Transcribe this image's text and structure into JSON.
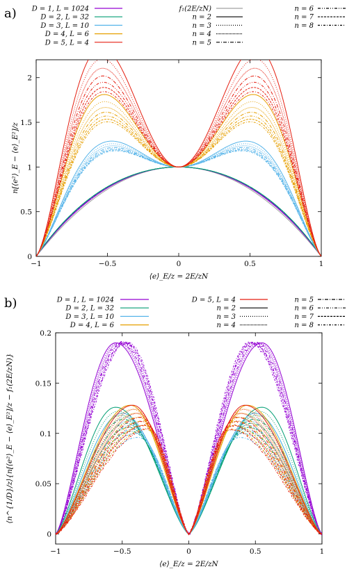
{
  "panels": [
    {
      "panel_label": "a)",
      "chart_data": {
        "type": "line",
        "xlabel": "⟨e⟩_E/z = 2E/zN",
        "ylabel": "n[⟨e²⟩_E − ⟨e⟩_E²]/z",
        "xlim": [
          -1,
          1
        ],
        "ylim": [
          0,
          2.2
        ],
        "xticks": [
          -1,
          -0.5,
          0,
          0.5,
          1
        ],
        "xtick_labels": [
          "−1",
          "−0.5",
          "0",
          "0.5",
          "1"
        ],
        "yticks": [
          0,
          0.5,
          1,
          1.5,
          2
        ],
        "ytick_labels": [
          "0",
          "0.5",
          "1",
          "1.5",
          "2"
        ],
        "grid": false,
        "legend_position": "top",
        "legend": [
          {
            "label": "D = 1, L = 1024",
            "color": "#9400d3",
            "dash": "solid"
          },
          {
            "label": "D = 2, L = 32",
            "color": "#009e73",
            "dash": "solid"
          },
          {
            "label": "D = 3, L = 10",
            "color": "#56b4e9",
            "dash": "solid"
          },
          {
            "label": "D = 4, L = 6",
            "color": "#e69f00",
            "dash": "solid"
          },
          {
            "label": "D = 5, L = 4",
            "color": "#e51e10",
            "dash": "solid"
          },
          {
            "label": "f₁(2E/zN)",
            "color": "#a0a0a0",
            "dash": "solid"
          },
          {
            "label": "n = 2",
            "color": "#000000",
            "dash": "solid"
          },
          {
            "label": "n = 3",
            "color": "#000000",
            "dash": "1,2"
          },
          {
            "label": "n = 4",
            "color": "#000000",
            "dash": "1,1"
          },
          {
            "label": "n = 5",
            "color": "#000000",
            "dash": "5,2,1,2"
          },
          {
            "label": "n = 6",
            "color": "#000000",
            "dash": "4,2,1,2,1,2"
          },
          {
            "label": "n = 7",
            "color": "#000000",
            "dash": "3,1.5"
          },
          {
            "label": "n = 8",
            "color": "#000000",
            "dash": "3,2,1,2"
          }
        ],
        "series": [
          {
            "D": 1,
            "color": "#9400d3",
            "peak_n2": [
              0.0,
              1.0
            ],
            "edge": 0.3
          },
          {
            "D": 2,
            "color": "#009e73",
            "peak_n2": [
              0.0,
              1.0
            ],
            "edge": 0.45
          },
          {
            "D": 3,
            "color": "#56b4e9",
            "peak_n2": [
              0.4,
              1.27
            ],
            "edge": 0.6
          },
          {
            "D": 4,
            "color": "#e69f00",
            "peak_n2": [
              0.38,
              1.65
            ],
            "edge": 0.8
          },
          {
            "D": 5,
            "color": "#e51e10",
            "peak_n2": [
              0.37,
              2.0
            ],
            "edge": 1.0
          }
        ],
        "reference": {
          "name": "f₁(2E/zN)",
          "color": "#a0a0a0",
          "formula": "1 - x^2"
        }
      }
    },
    {
      "panel_label": "b)",
      "chart_data": {
        "type": "line",
        "xlabel": "⟨e⟩_E/z = 2E/zN",
        "ylabel": "⟨n^{1/D}/z⟩{n[⟨e²⟩_E − ⟨e⟩_E²]/z − f₁(2E/zN)}",
        "xlim": [
          -1,
          1
        ],
        "ylim": [
          -0.01,
          0.2
        ],
        "xticks": [
          -1,
          -0.5,
          0,
          0.5,
          1
        ],
        "xtick_labels": [
          "−1",
          "−0.5",
          "0",
          "0.5",
          "1"
        ],
        "yticks": [
          0,
          0.05,
          0.1,
          0.15,
          0.2
        ],
        "ytick_labels": [
          "0",
          "0.05",
          "0.1",
          "0.15",
          "0.2"
        ],
        "grid": false,
        "legend_position": "top",
        "legend": [
          {
            "label": "D = 1, L = 1024",
            "color": "#9400d3",
            "dash": "solid"
          },
          {
            "label": "D = 2, L = 32",
            "color": "#009e73",
            "dash": "solid"
          },
          {
            "label": "D = 3, L = 10",
            "color": "#56b4e9",
            "dash": "solid"
          },
          {
            "label": "D = 4, L = 6",
            "color": "#e69f00",
            "dash": "solid"
          },
          {
            "label": "D = 5, L = 4",
            "color": "#e51e10",
            "dash": "solid"
          },
          {
            "label": "n = 2",
            "color": "#000000",
            "dash": "solid"
          },
          {
            "label": "n = 3",
            "color": "#000000",
            "dash": "1,2"
          },
          {
            "label": "n = 4",
            "color": "#000000",
            "dash": "1,1"
          },
          {
            "label": "n = 5",
            "color": "#000000",
            "dash": "5,2,1,2"
          },
          {
            "label": "n = 6",
            "color": "#000000",
            "dash": "4,2,1,2,1,2"
          },
          {
            "label": "n = 7",
            "color": "#000000",
            "dash": "3,1.5"
          },
          {
            "label": "n = 8",
            "color": "#000000",
            "dash": "3,2,1,2"
          }
        ],
        "series": [
          {
            "D": 1,
            "color": "#9400d3",
            "peak_x_n2": 0.55,
            "peak_y_n2": 0.19
          },
          {
            "D": 2,
            "color": "#009e73",
            "peak_x_n2": 0.55,
            "peak_y_n2": 0.14
          },
          {
            "D": 3,
            "color": "#56b4e9",
            "peak_x_n2": 0.5,
            "peak_y_n2": 0.15
          },
          {
            "D": 4,
            "color": "#e69f00",
            "peak_x_n2": 0.44,
            "peak_y_n2": 0.16
          },
          {
            "D": 5,
            "color": "#e51e10",
            "peak_x_n2": 0.42,
            "peak_y_n2": 0.16
          }
        ]
      }
    }
  ]
}
